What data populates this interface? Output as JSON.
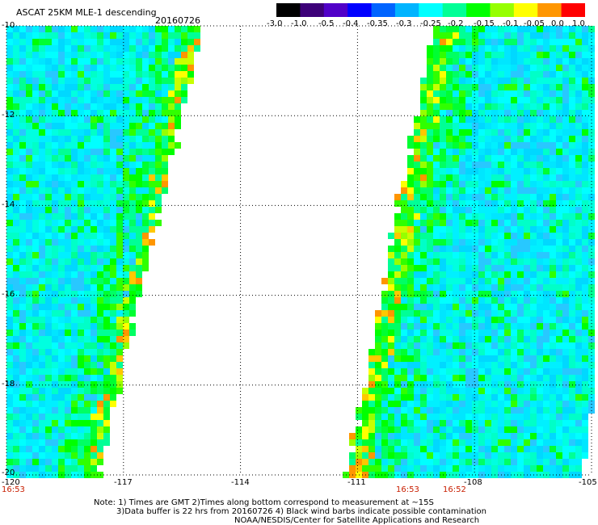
{
  "header": {
    "title": "ASCAT 25KM MLE-1 descending",
    "date": "20160726"
  },
  "colorbar": {
    "labels": [
      "-3.0",
      "-1.0",
      "-0.5",
      "-0.4",
      "-0.35",
      "-0.3",
      "-0.25",
      "-0.2",
      "-0.15",
      "-0.1",
      "-0.05",
      "0.0",
      "1.0"
    ],
    "colors": [
      "#000000",
      "#3c0078",
      "#5000c8",
      "#0000ff",
      "#0064ff",
      "#00b4ff",
      "#00ffff",
      "#00ff96",
      "#00ff00",
      "#96ff00",
      "#ffff00",
      "#ff9600",
      "#ff0000"
    ]
  },
  "map": {
    "lon_ticks": [
      "-120",
      "-117",
      "-114",
      "-111",
      "-108",
      "-105"
    ],
    "lat_ticks": [
      "-10",
      "-12",
      "-14",
      "-16",
      "-18",
      "-20"
    ],
    "lon_range": [
      -120,
      -105
    ],
    "lat_range": [
      -20,
      -10
    ],
    "grid": true,
    "swath_times": [
      "16:53",
      "16:53",
      "16:52"
    ]
  },
  "notes": {
    "line1": "Note: 1) Times are GMT 2)Times along bottom correspond to measurement at ~15S",
    "line2": "3)Data buffer is 22 hrs from 20160726 4) Black wind barbs indicate possible contamination",
    "line3": "NOAA/NESDIS/Center for Satellite Applications and Research"
  }
}
